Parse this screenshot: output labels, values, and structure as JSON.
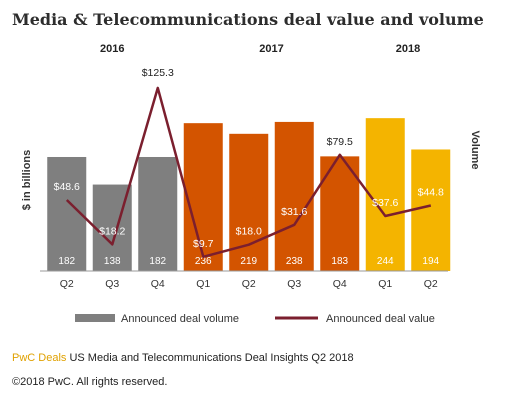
{
  "chart_data": {
    "type": "bar",
    "title": "Media & Telecommunications deal value and volume",
    "ylabel": "$ in billions",
    "y2label": "Volume",
    "year_groups": [
      {
        "label": "2016",
        "start": 0,
        "end": 2
      },
      {
        "label": "2017",
        "start": 3,
        "end": 6
      },
      {
        "label": "2018",
        "start": 7,
        "end": 8
      }
    ],
    "categories": [
      "Q2",
      "Q3",
      "Q4",
      "Q1",
      "Q2",
      "Q3",
      "Q4",
      "Q1",
      "Q2"
    ],
    "series": [
      {
        "name": "Announced deal volume",
        "kind": "bar",
        "values": [
          182,
          138,
          182,
          236,
          219,
          238,
          183,
          244,
          194
        ],
        "labels": [
          "182",
          "138",
          "182",
          "236",
          "219",
          "238",
          "183",
          "244",
          "194"
        ]
      },
      {
        "name": "Announced deal value",
        "kind": "line",
        "values": [
          48.6,
          18.2,
          125.3,
          9.7,
          18.0,
          31.6,
          79.5,
          37.6,
          44.8
        ],
        "labels": [
          "$48.6",
          "$18.2",
          "$125.3",
          "$9.7",
          "$18.0",
          "$31.6",
          "$79.5",
          "$37.6",
          "$44.8"
        ]
      }
    ],
    "bar_colors": [
      "#7f7f7f",
      "#7f7f7f",
      "#7f7f7f",
      "#d35400",
      "#d35400",
      "#d35400",
      "#d35400",
      "#f4b400",
      "#f4b400"
    ],
    "line_color": "#7b1f2e",
    "ylim_value": [
      0,
      130
    ],
    "ylim_volume": [
      0,
      265
    ],
    "legend_placement": "bottom",
    "grid": false
  },
  "footer": {
    "brand": "PwC Deals",
    "source": "US Media and Telecommunications Deal Insights Q2 2018",
    "copyright": "©2018 PwC. All rights reserved."
  }
}
